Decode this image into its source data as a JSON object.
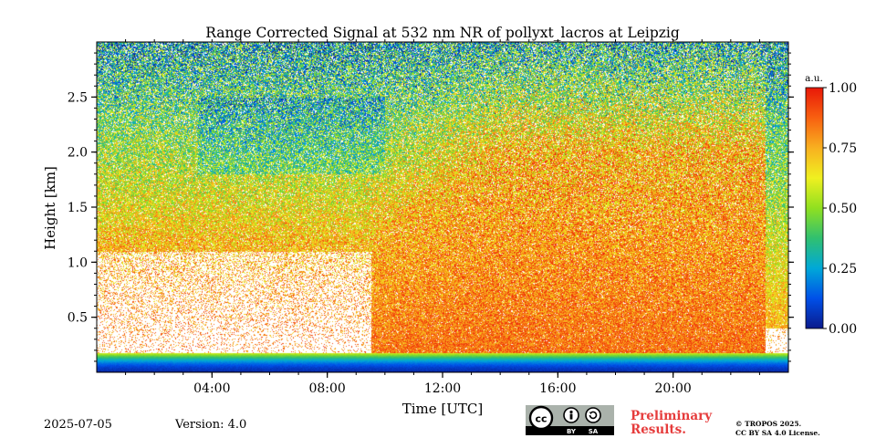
{
  "chart_data": {
    "type": "heatmap",
    "title": "Range Corrected Signal at 532 nm NR of pollyxt_lacros at Leipzig",
    "xlabel": "Time [UTC]",
    "ylabel": "Height [km]",
    "x_range_hours": [
      0,
      24
    ],
    "x_ticks": [
      4,
      8,
      12,
      16,
      20
    ],
    "x_tick_labels": [
      "04:00",
      "08:00",
      "12:00",
      "16:00",
      "20:00"
    ],
    "y_range_km": [
      0,
      3.0
    ],
    "y_ticks": [
      0.5,
      1.0,
      1.5,
      2.0,
      2.5
    ],
    "y_tick_labels": [
      "0.5",
      "1.0",
      "1.5",
      "2.0",
      "2.5"
    ],
    "colorbar": {
      "label": "a.u.",
      "range": [
        0.0,
        1.0
      ],
      "ticks": [
        0.0,
        0.25,
        0.5,
        0.75,
        1.0
      ],
      "tick_labels": [
        "0.00",
        "0.25",
        "0.50",
        "0.75",
        "1.00"
      ],
      "colormap": [
        "#0a1a8c",
        "#0050e8",
        "#00a8d8",
        "#30c070",
        "#90e020",
        "#f0f020",
        "#f8b020",
        "#f86010",
        "#e81808"
      ]
    },
    "features": {
      "near_field_overlap_top_km": 0.18,
      "mixing_layer_top_km": 2.0,
      "clear_low_signal_periods_hours": [
        [
          0,
          9.5
        ],
        [
          23.2,
          24
        ]
      ]
    }
  },
  "footer": {
    "date": "2025-07-05",
    "version": "Version: 4.0",
    "preliminary_line1": "Preliminary",
    "preliminary_line2": "Results.",
    "copyright_line1": "© TROPOS 2025.",
    "copyright_line2": "CC BY SA 4.0 License.",
    "badge_cc": "cc",
    "badge_by": "BY",
    "badge_sa": "SA"
  }
}
